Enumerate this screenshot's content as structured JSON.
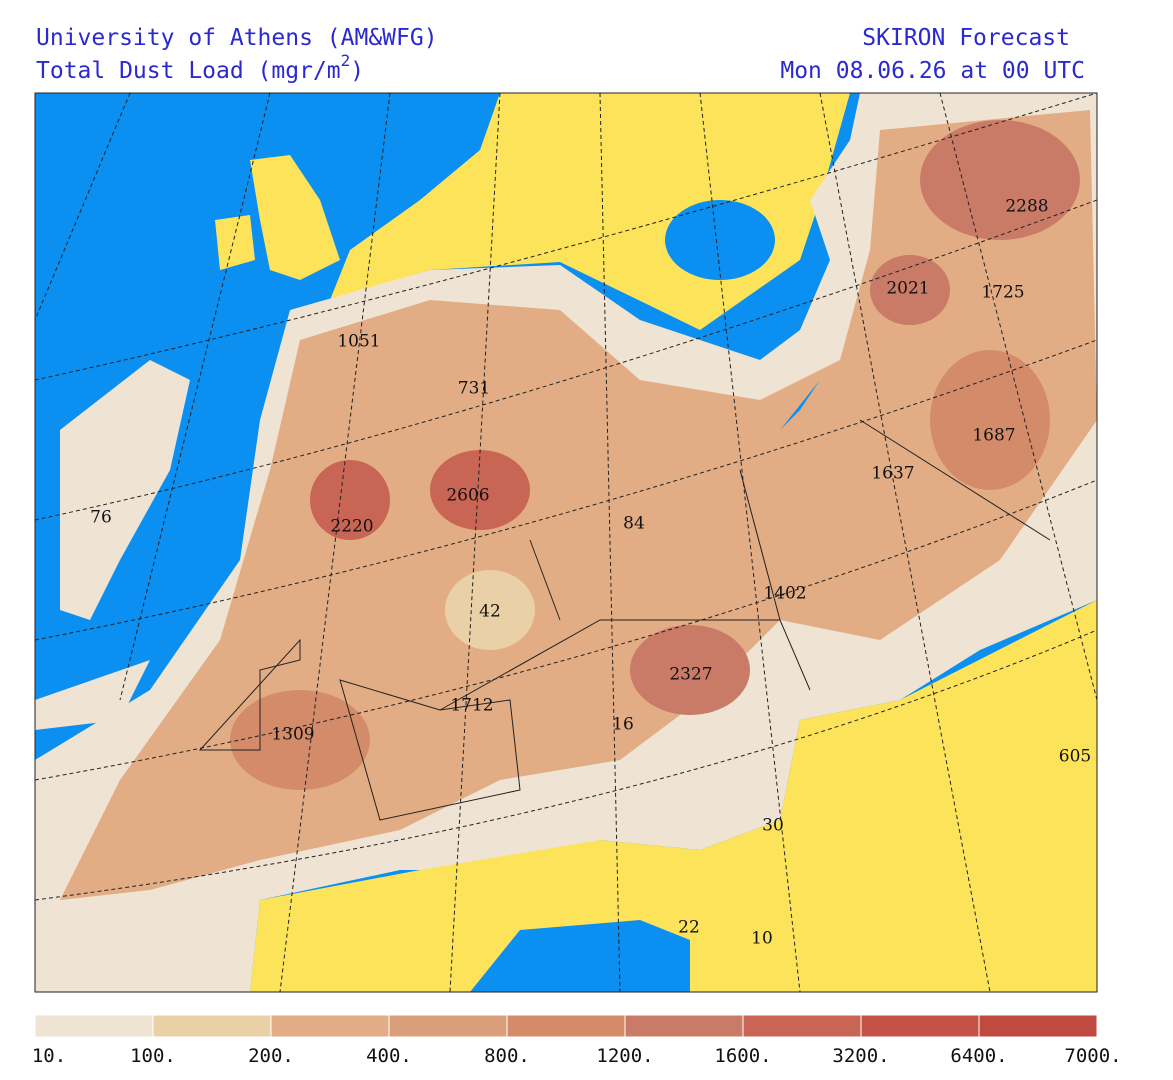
{
  "header": {
    "left_line1": "University of Athens (AM&WFG)",
    "left_line2": {
      "text": "Total Dust Load (mgr/m",
      "superscript": "2",
      "close": ")"
    },
    "right_line1": "SKIRON Forecast",
    "right_line2": "Mon 08.06.26 at 00 UTC"
  },
  "map": {
    "labels": [
      2288,
      2021,
      1725,
      1051,
      731,
      1687,
      1637,
      2606,
      2220,
      76,
      84,
      1402,
      42,
      2327,
      1712,
      1309,
      16,
      30,
      605,
      22,
      10
    ]
  },
  "legend": {
    "labels": [
      "10.",
      "100.",
      "200.",
      "400.",
      "800.",
      "1200.",
      "1600.",
      "3200.",
      "6400.",
      "7000."
    ],
    "colors": [
      "#efe4d3",
      "#e9d0a7",
      "#e2ad85",
      "#d99f7b",
      "#d48b69",
      "#c97b67",
      "#c96555",
      "#c55247",
      "#c04a40"
    ]
  }
}
